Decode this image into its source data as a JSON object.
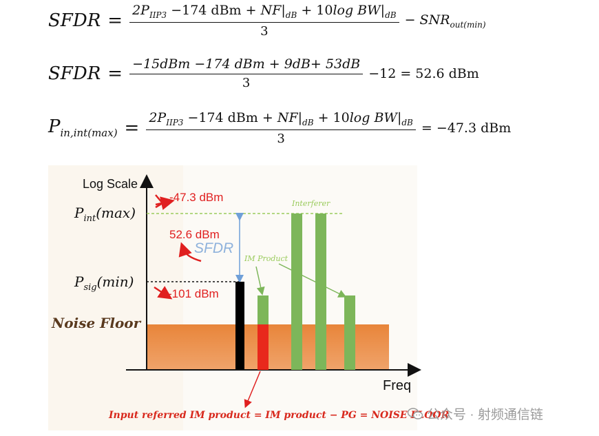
{
  "equations": {
    "eq1": {
      "lhs": "SFDR",
      "eq": "=",
      "num_coef": "2P",
      "num_sub": "IIP3",
      "num_rest1": " −174 dBm + ",
      "num_nf": "NF|",
      "num_nf_sub": "dB",
      "num_rest2": " + 10",
      "num_log": "log BW|",
      "num_log_sub": "dB",
      "den": "3",
      "tail": "− SNR",
      "tail_sub": "out(min)"
    },
    "eq2": {
      "lhs": "SFDR",
      "eq": "=",
      "num": "−15dBm −174 dBm + 9dB+ 53dB",
      "den": "3",
      "tail": "−12  =  52.6 dBm"
    },
    "eq3": {
      "lhs": "P",
      "lhs_sub": "in,int(max)",
      "eq": "=",
      "num_coef": "2P",
      "num_sub": "IIP3",
      "num_rest1": " −174 dBm + ",
      "num_nf": "NF|",
      "num_nf_sub": "dB",
      "num_rest2": " + 10",
      "num_log": "log BW|",
      "num_log_sub": "dB",
      "den": "3",
      "tail": "=  −47.3 dBm"
    }
  },
  "diagram": {
    "y_axis_label": "Log Scale",
    "x_axis_label": "Freq",
    "p_int_label": "P",
    "p_int_sub": "int",
    "p_int_suffix": "(max)",
    "p_sig_label": "P",
    "p_sig_sub": "sig",
    "p_sig_suffix": "(min)",
    "noise_floor_label": "Noise Floor",
    "annotation_top": "-47.3 dBm",
    "annotation_sfdr_value": "52.6 dBm",
    "annotation_sfdr": "SFDR",
    "annotation_bottom": "-101 dBm",
    "interferer_label": "Interferer",
    "im_product_label": "IM Product",
    "footer_note": "Input referred IM product = IM product − PG = NOISE FLOOR",
    "watermark": "公众号 · 射频通信链",
    "colors": {
      "noise_band": "#e8853a",
      "green_bar": "#7db65a",
      "black_bar": "#000000",
      "red_bar": "#e8281c",
      "annotation_red": "#e02020",
      "sfdr_blue": "#8fb2dc",
      "dashed_green": "#9acb5c"
    }
  }
}
